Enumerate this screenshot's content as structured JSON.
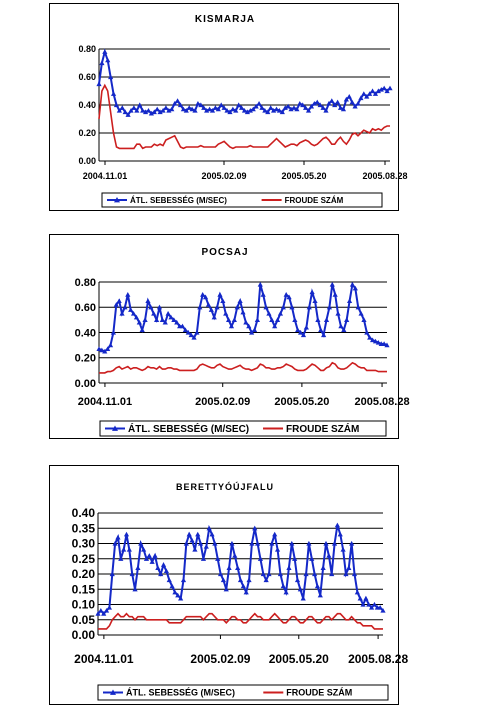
{
  "chart_data": [
    {
      "type": "line",
      "title": "KISMARJA",
      "xlabel": "",
      "ylabel": "",
      "ylim": [
        0,
        0.8
      ],
      "yticks": [
        "0.00",
        "0.20",
        "0.40",
        "0.60",
        "0.80"
      ],
      "xticks": [
        "2004.11.01",
        "2005.02.09",
        "2005.05.20",
        "2005.08.28"
      ],
      "grid": true,
      "legend_position": "bottom",
      "series": [
        {
          "name": "ÁTL. SEBESSÉG (M/SEC)",
          "color": "#1428c8",
          "marker": "triangle",
          "values": [
            0.55,
            0.7,
            0.78,
            0.72,
            0.6,
            0.48,
            0.4,
            0.36,
            0.38,
            0.35,
            0.33,
            0.36,
            0.38,
            0.36,
            0.4,
            0.36,
            0.35,
            0.36,
            0.34,
            0.35,
            0.37,
            0.35,
            0.36,
            0.38,
            0.36,
            0.37,
            0.41,
            0.43,
            0.4,
            0.37,
            0.36,
            0.38,
            0.37,
            0.36,
            0.41,
            0.4,
            0.38,
            0.36,
            0.37,
            0.36,
            0.38,
            0.37,
            0.4,
            0.38,
            0.36,
            0.35,
            0.37,
            0.36,
            0.4,
            0.38,
            0.36,
            0.35,
            0.36,
            0.37,
            0.39,
            0.41,
            0.38,
            0.36,
            0.35,
            0.38,
            0.36,
            0.37,
            0.36,
            0.35,
            0.38,
            0.39,
            0.37,
            0.38,
            0.37,
            0.41,
            0.4,
            0.38,
            0.36,
            0.39,
            0.41,
            0.42,
            0.4,
            0.38,
            0.36,
            0.41,
            0.43,
            0.4,
            0.42,
            0.38,
            0.37,
            0.44,
            0.46,
            0.42,
            0.39,
            0.41,
            0.45,
            0.48,
            0.46,
            0.48,
            0.5,
            0.48,
            0.5,
            0.51,
            0.52,
            0.5,
            0.52
          ]
        },
        {
          "name": "FROUDE SZÁM",
          "color": "#cc1f1f",
          "marker": "none",
          "values": [
            0.3,
            0.5,
            0.54,
            0.5,
            0.35,
            0.2,
            0.1,
            0.09,
            0.09,
            0.09,
            0.09,
            0.09,
            0.09,
            0.12,
            0.12,
            0.09,
            0.1,
            0.1,
            0.1,
            0.12,
            0.11,
            0.12,
            0.11,
            0.15,
            0.16,
            0.17,
            0.18,
            0.14,
            0.1,
            0.09,
            0.1,
            0.1,
            0.1,
            0.1,
            0.1,
            0.11,
            0.1,
            0.1,
            0.1,
            0.1,
            0.1,
            0.12,
            0.13,
            0.14,
            0.12,
            0.1,
            0.09,
            0.1,
            0.1,
            0.1,
            0.1,
            0.1,
            0.11,
            0.1,
            0.1,
            0.1,
            0.1,
            0.1,
            0.1,
            0.12,
            0.14,
            0.16,
            0.14,
            0.12,
            0.1,
            0.11,
            0.12,
            0.12,
            0.11,
            0.13,
            0.14,
            0.15,
            0.14,
            0.12,
            0.11,
            0.12,
            0.14,
            0.16,
            0.17,
            0.15,
            0.12,
            0.12,
            0.15,
            0.17,
            0.14,
            0.12,
            0.15,
            0.19,
            0.2,
            0.18,
            0.2,
            0.22,
            0.21,
            0.2,
            0.23,
            0.22,
            0.23,
            0.22,
            0.24,
            0.25,
            0.25
          ]
        }
      ]
    },
    {
      "type": "line",
      "title": "POCSAJ",
      "xlabel": "",
      "ylabel": "",
      "ylim": [
        0,
        0.8
      ],
      "yticks": [
        "0.00",
        "0.20",
        "0.40",
        "0.60",
        "0.80"
      ],
      "xticks": [
        "2004.11.01",
        "2005.02.09",
        "2005.05.20",
        "2005.08.28"
      ],
      "grid": true,
      "legend_position": "bottom",
      "series": [
        {
          "name": "ÁTL. SEBESSÉG (M/SEC)",
          "color": "#1428c8",
          "marker": "triangle",
          "values": [
            0.27,
            0.26,
            0.25,
            0.27,
            0.3,
            0.4,
            0.62,
            0.65,
            0.55,
            0.6,
            0.7,
            0.58,
            0.55,
            0.52,
            0.48,
            0.42,
            0.5,
            0.65,
            0.6,
            0.55,
            0.5,
            0.6,
            0.5,
            0.48,
            0.55,
            0.52,
            0.5,
            0.48,
            0.45,
            0.45,
            0.42,
            0.4,
            0.38,
            0.36,
            0.4,
            0.6,
            0.7,
            0.68,
            0.62,
            0.58,
            0.52,
            0.6,
            0.7,
            0.65,
            0.55,
            0.5,
            0.45,
            0.5,
            0.6,
            0.65,
            0.56,
            0.48,
            0.45,
            0.4,
            0.42,
            0.5,
            0.78,
            0.7,
            0.6,
            0.55,
            0.5,
            0.45,
            0.5,
            0.55,
            0.6,
            0.7,
            0.68,
            0.6,
            0.5,
            0.42,
            0.4,
            0.38,
            0.44,
            0.6,
            0.72,
            0.65,
            0.5,
            0.42,
            0.38,
            0.5,
            0.6,
            0.78,
            0.7,
            0.55,
            0.45,
            0.42,
            0.5,
            0.65,
            0.78,
            0.75,
            0.6,
            0.55,
            0.5,
            0.4,
            0.36,
            0.34,
            0.33,
            0.32,
            0.31,
            0.31,
            0.3
          ]
        },
        {
          "name": "FROUDE SZÁM",
          "color": "#cc1f1f",
          "marker": "none",
          "values": [
            0.08,
            0.08,
            0.08,
            0.09,
            0.09,
            0.1,
            0.12,
            0.13,
            0.11,
            0.12,
            0.13,
            0.11,
            0.12,
            0.12,
            0.11,
            0.1,
            0.11,
            0.13,
            0.12,
            0.12,
            0.11,
            0.13,
            0.11,
            0.11,
            0.12,
            0.12,
            0.11,
            0.11,
            0.1,
            0.1,
            0.1,
            0.1,
            0.1,
            0.1,
            0.11,
            0.14,
            0.15,
            0.14,
            0.13,
            0.12,
            0.12,
            0.14,
            0.15,
            0.13,
            0.12,
            0.11,
            0.11,
            0.12,
            0.13,
            0.14,
            0.12,
            0.11,
            0.11,
            0.1,
            0.11,
            0.12,
            0.15,
            0.14,
            0.12,
            0.12,
            0.11,
            0.11,
            0.12,
            0.12,
            0.13,
            0.15,
            0.14,
            0.13,
            0.11,
            0.1,
            0.1,
            0.1,
            0.11,
            0.13,
            0.15,
            0.14,
            0.12,
            0.1,
            0.1,
            0.12,
            0.13,
            0.16,
            0.15,
            0.12,
            0.11,
            0.11,
            0.12,
            0.14,
            0.16,
            0.15,
            0.13,
            0.12,
            0.12,
            0.1,
            0.1,
            0.1,
            0.1,
            0.09,
            0.09,
            0.09,
            0.09
          ]
        }
      ]
    },
    {
      "type": "line",
      "title": "BERETTYÓÚJFALU",
      "xlabel": "",
      "ylabel": "",
      "ylim": [
        0,
        0.4
      ],
      "yticks": [
        "0.00",
        "0.05",
        "0.10",
        "0.15",
        "0.20",
        "0.25",
        "0.30",
        "0.35",
        "0.40"
      ],
      "xticks": [
        "2004.11.01",
        "2005.02.09",
        "2005.05.20",
        "2005.08.28"
      ],
      "grid": true,
      "legend_position": "bottom",
      "series": [
        {
          "name": "ÁTL. SEBESSÉG (M/SEC)",
          "color": "#1428c8",
          "marker": "triangle",
          "values": [
            0.07,
            0.08,
            0.07,
            0.08,
            0.09,
            0.2,
            0.3,
            0.32,
            0.25,
            0.28,
            0.33,
            0.28,
            0.2,
            0.15,
            0.22,
            0.3,
            0.28,
            0.25,
            0.26,
            0.24,
            0.26,
            0.22,
            0.2,
            0.23,
            0.21,
            0.18,
            0.16,
            0.14,
            0.13,
            0.12,
            0.18,
            0.3,
            0.33,
            0.31,
            0.28,
            0.33,
            0.3,
            0.25,
            0.29,
            0.35,
            0.33,
            0.3,
            0.25,
            0.2,
            0.18,
            0.15,
            0.22,
            0.3,
            0.26,
            0.22,
            0.18,
            0.16,
            0.14,
            0.18,
            0.3,
            0.35,
            0.3,
            0.25,
            0.2,
            0.18,
            0.2,
            0.3,
            0.33,
            0.28,
            0.2,
            0.16,
            0.14,
            0.22,
            0.3,
            0.25,
            0.18,
            0.15,
            0.12,
            0.2,
            0.3,
            0.25,
            0.2,
            0.16,
            0.13,
            0.22,
            0.3,
            0.26,
            0.2,
            0.3,
            0.36,
            0.33,
            0.28,
            0.2,
            0.22,
            0.3,
            0.2,
            0.14,
            0.12,
            0.1,
            0.12,
            0.1,
            0.09,
            0.1,
            0.09,
            0.09,
            0.08
          ]
        },
        {
          "name": "FROUDE SZÁM",
          "color": "#cc1f1f",
          "marker": "none",
          "values": [
            0.02,
            0.02,
            0.02,
            0.02,
            0.03,
            0.05,
            0.06,
            0.07,
            0.06,
            0.06,
            0.07,
            0.06,
            0.06,
            0.05,
            0.06,
            0.06,
            0.06,
            0.05,
            0.05,
            0.05,
            0.05,
            0.05,
            0.05,
            0.05,
            0.05,
            0.04,
            0.04,
            0.04,
            0.04,
            0.04,
            0.05,
            0.06,
            0.06,
            0.06,
            0.06,
            0.06,
            0.06,
            0.05,
            0.06,
            0.07,
            0.07,
            0.06,
            0.05,
            0.05,
            0.05,
            0.04,
            0.05,
            0.06,
            0.06,
            0.05,
            0.05,
            0.04,
            0.04,
            0.05,
            0.06,
            0.07,
            0.06,
            0.06,
            0.05,
            0.05,
            0.05,
            0.06,
            0.07,
            0.06,
            0.05,
            0.04,
            0.04,
            0.05,
            0.06,
            0.06,
            0.05,
            0.04,
            0.04,
            0.05,
            0.06,
            0.06,
            0.05,
            0.04,
            0.04,
            0.05,
            0.06,
            0.06,
            0.05,
            0.06,
            0.07,
            0.07,
            0.06,
            0.05,
            0.05,
            0.06,
            0.05,
            0.04,
            0.04,
            0.03,
            0.03,
            0.03,
            0.03,
            0.02,
            0.02,
            0.02,
            0.02
          ]
        }
      ]
    }
  ]
}
